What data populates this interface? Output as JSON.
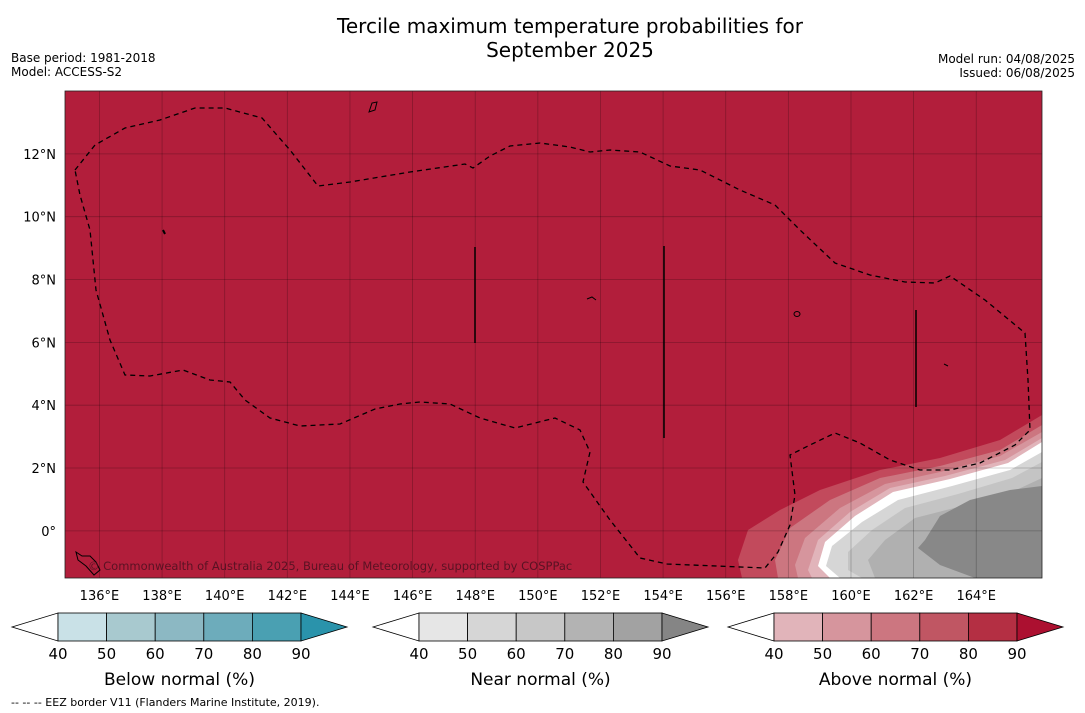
{
  "title_line1": "Tercile maximum temperature probabilities for",
  "title_line2": "September 2025",
  "base_period": "Base period: 1981-2018",
  "model": "Model: ACCESS-S2",
  "model_run": "Model run: 04/08/2025",
  "issued": "Issued: 06/08/2025",
  "copyright": "© Commonwealth of Australia 2025, Bureau of Meteorology, supported by COSPPac",
  "footnote": "--  --  -- EEZ border V11 (Flanders Marine Institute, 2019).",
  "map": {
    "lon_labels": [
      "136°E",
      "138°E",
      "140°E",
      "142°E",
      "144°E",
      "146°E",
      "148°E",
      "150°E",
      "152°E",
      "154°E",
      "156°E",
      "158°E",
      "160°E",
      "162°E",
      "164°E"
    ],
    "lat_labels": [
      "12°N",
      "10°N",
      "8°N",
      "6°N",
      "4°N",
      "2°N",
      "0°"
    ],
    "lon_values": [
      136,
      138,
      140,
      142,
      144,
      146,
      148,
      150,
      152,
      154,
      156,
      158,
      160,
      162,
      164
    ],
    "lat_values": [
      12,
      10,
      8,
      6,
      4,
      2,
      0
    ],
    "lon_range": [
      134.9,
      166.1
    ],
    "lat_range": [
      -1.5,
      14
    ],
    "fill_color": "#b21e3b"
  },
  "colorbars": [
    {
      "label": "Below normal (%)",
      "ticks": [
        "40",
        "50",
        "60",
        "70",
        "80",
        "90"
      ],
      "colors": [
        "#ffffff",
        "#c9e1e7",
        "#a8c9cf",
        "#8cb8c3",
        "#6dacbb",
        "#4aa0b2",
        "#2a93ab"
      ]
    },
    {
      "label": "Near normal (%)",
      "ticks": [
        "40",
        "50",
        "60",
        "70",
        "80",
        "90"
      ],
      "colors": [
        "#ffffff",
        "#e6e6e6",
        "#d6d6d6",
        "#c7c7c7",
        "#b3b3b3",
        "#a2a2a2",
        "#858585"
      ]
    },
    {
      "label": "Above normal (%)",
      "ticks": [
        "40",
        "50",
        "60",
        "70",
        "80",
        "90"
      ],
      "colors": [
        "#ffffff",
        "#e1b4ba",
        "#d6959d",
        "#cc7680",
        "#c05663",
        "#b42f43",
        "#ac1030"
      ]
    }
  ]
}
